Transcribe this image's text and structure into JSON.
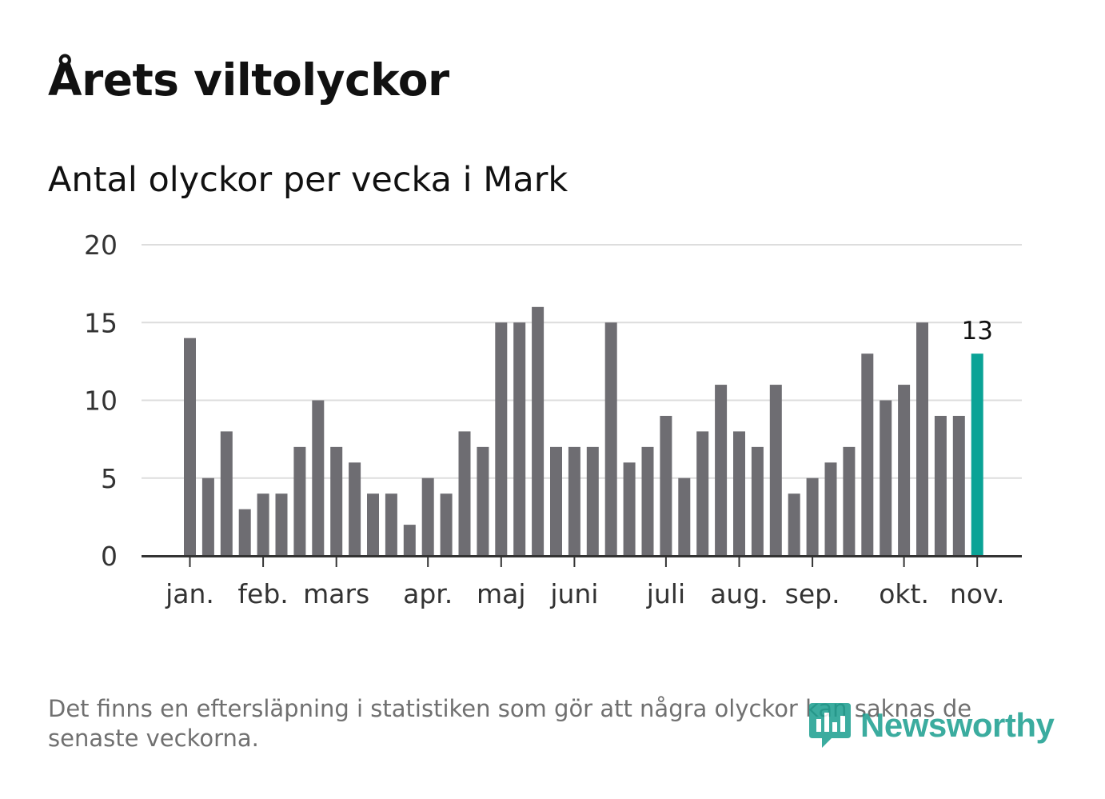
{
  "title": "Årets viltolyckor",
  "subtitle": "Antal olyckor per vecka i Mark",
  "footnote": "Det finns en eftersläpning i statistiken som gör att några olyckor kan saknas de senaste veckorna.",
  "logo": {
    "text": "Newsworthy",
    "icon": "bar-chart-speech-bubble-icon"
  },
  "colors": {
    "bar": "#6e6d72",
    "highlight": "#0aa396",
    "grid": "#dddddd",
    "axis": "#333333",
    "tick_label": "#333333",
    "logo": "#1a9e8f"
  },
  "chart_data": {
    "type": "bar",
    "title": "Årets viltolyckor",
    "subtitle": "Antal olyckor per vecka i Mark",
    "xlabel": "",
    "ylabel": "",
    "ylim": [
      0,
      20
    ],
    "yticks": [
      "0",
      "5",
      "10",
      "15",
      "20"
    ],
    "grid": true,
    "legend": "none",
    "weeks": [
      1,
      2,
      3,
      4,
      5,
      6,
      7,
      8,
      9,
      10,
      11,
      12,
      13,
      14,
      15,
      16,
      17,
      18,
      19,
      20,
      21,
      22,
      23,
      24,
      25,
      26,
      27,
      28,
      29,
      30,
      31,
      32,
      33,
      34,
      35,
      36,
      37,
      38,
      39,
      40,
      41,
      42,
      43,
      44
    ],
    "values": [
      14,
      5,
      8,
      3,
      4,
      4,
      7,
      10,
      7,
      6,
      4,
      4,
      2,
      5,
      4,
      8,
      7,
      15,
      15,
      16,
      7,
      7,
      7,
      15,
      6,
      7,
      9,
      5,
      8,
      11,
      8,
      7,
      11,
      4,
      5,
      6,
      7,
      13,
      10,
      11,
      15,
      9,
      9,
      13
    ],
    "highlight_index": 43,
    "highlight_label": "13",
    "month_labels": [
      {
        "label": "jan.",
        "week_position": 1
      },
      {
        "label": "feb.",
        "week_position": 5
      },
      {
        "label": "mars",
        "week_position": 9
      },
      {
        "label": "apr.",
        "week_position": 14
      },
      {
        "label": "maj",
        "week_position": 18
      },
      {
        "label": "juni",
        "week_position": 22
      },
      {
        "label": "juli",
        "week_position": 27
      },
      {
        "label": "aug.",
        "week_position": 31
      },
      {
        "label": "sep.",
        "week_position": 35
      },
      {
        "label": "okt.",
        "week_position": 40
      },
      {
        "label": "nov.",
        "week_position": 44
      }
    ]
  }
}
